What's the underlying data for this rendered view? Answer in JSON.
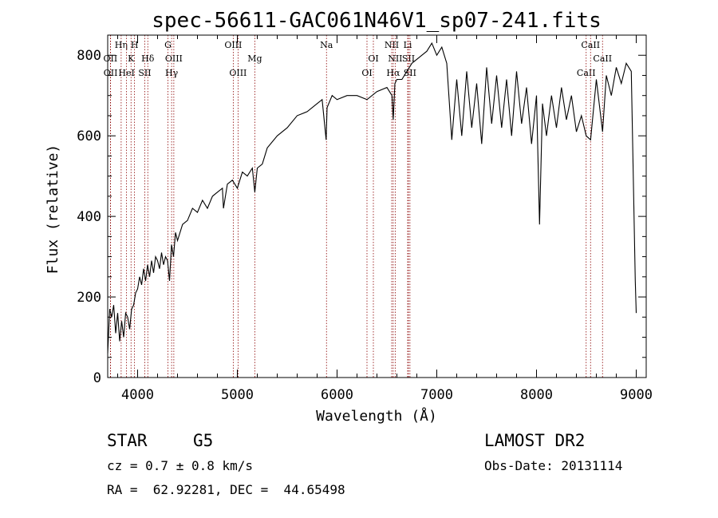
{
  "title": "spec-56611-GAC061N46V1_sp07-241.fits",
  "info": {
    "object_class": "STAR",
    "subclass": "G5",
    "cz": "cz = 0.7 ± 0.8 km/s",
    "radec": "RA =  62.92281, DEC =  44.65498",
    "survey": "LAMOST DR2",
    "obs_date": "Obs-Date: 20131114"
  },
  "colors": {
    "spectrum": "#000000",
    "line_marker": "#8b0000",
    "axes": "#000000"
  },
  "chart_data": {
    "type": "line",
    "xlabel": "Wavelength (Å)",
    "ylabel": "Flux (relative)",
    "xlim": [
      3700,
      9100
    ],
    "ylim": [
      0,
      850
    ],
    "xticks": [
      4000,
      5000,
      6000,
      7000,
      8000,
      9000
    ],
    "yticks": [
      0,
      200,
      400,
      600,
      800
    ],
    "series": [
      {
        "x": [
          3700,
          3720,
          3740,
          3760,
          3780,
          3800,
          3820,
          3840,
          3860,
          3880,
          3900,
          3920,
          3940,
          3960,
          3980,
          4000,
          4020,
          4040,
          4060,
          4080,
          4100,
          4120,
          4140,
          4160,
          4180,
          4200,
          4220,
          4240,
          4260,
          4280,
          4300,
          4320,
          4340,
          4360,
          4380,
          4400,
          4450,
          4500,
          4550,
          4600,
          4650,
          4700,
          4750,
          4800,
          4850,
          4861,
          4900,
          4950,
          5000,
          5050,
          5100,
          5150,
          5175,
          5200,
          5250,
          5300,
          5400,
          5500,
          5600,
          5700,
          5800,
          5850,
          5890,
          5900,
          5950,
          6000,
          6100,
          6200,
          6300,
          6400,
          6500,
          6550,
          6563,
          6580,
          6600,
          6650,
          6700,
          6750,
          6800,
          6850,
          6900,
          6950,
          7000,
          7050,
          7100,
          7150,
          7200,
          7250,
          7300,
          7350,
          7400,
          7450,
          7500,
          7550,
          7600,
          7650,
          7700,
          7750,
          7800,
          7850,
          7900,
          7950,
          8000,
          8030,
          8060,
          8100,
          8150,
          8200,
          8250,
          8300,
          8350,
          8400,
          8450,
          8498,
          8542,
          8600,
          8662,
          8700,
          8750,
          8800,
          8850,
          8900,
          8950,
          8990,
          9000
        ],
        "y": [
          60,
          170,
          150,
          180,
          110,
          160,
          90,
          140,
          100,
          160,
          150,
          120,
          170,
          180,
          210,
          220,
          250,
          230,
          270,
          240,
          280,
          250,
          290,
          260,
          300,
          290,
          270,
          310,
          280,
          300,
          290,
          240,
          330,
          300,
          360,
          340,
          380,
          390,
          420,
          410,
          440,
          420,
          450,
          460,
          470,
          420,
          480,
          490,
          470,
          510,
          500,
          520,
          460,
          520,
          530,
          570,
          600,
          620,
          650,
          660,
          680,
          690,
          590,
          670,
          700,
          690,
          700,
          700,
          690,
          710,
          720,
          700,
          640,
          730,
          740,
          740,
          760,
          780,
          790,
          800,
          810,
          830,
          800,
          820,
          780,
          590,
          740,
          600,
          760,
          620,
          730,
          580,
          770,
          630,
          750,
          620,
          740,
          600,
          760,
          630,
          720,
          580,
          700,
          380,
          680,
          600,
          700,
          620,
          720,
          640,
          700,
          610,
          650,
          600,
          590,
          740,
          610,
          750,
          700,
          770,
          730,
          780,
          760,
          240,
          160
        ]
      }
    ],
    "line_markers": [
      {
        "name": "OII",
        "wavelength": 3727,
        "row": 2
      },
      {
        "name": "OII",
        "wavelength": 3729,
        "row": 3
      },
      {
        "name": "Hη",
        "wavelength": 3835,
        "row": 1
      },
      {
        "name": "HeI",
        "wavelength": 3889,
        "row": 3
      },
      {
        "name": "K",
        "wavelength": 3934,
        "row": 2
      },
      {
        "name": "H",
        "wavelength": 3969,
        "row": 1
      },
      {
        "name": "SII",
        "wavelength": 4072,
        "row": 3
      },
      {
        "name": "Hδ",
        "wavelength": 4102,
        "row": 2
      },
      {
        "name": "G",
        "wavelength": 4304,
        "row": 1
      },
      {
        "name": "Hγ",
        "wavelength": 4341,
        "row": 3
      },
      {
        "name": "OIII",
        "wavelength": 4363,
        "row": 2
      },
      {
        "name": "OIII",
        "wavelength": 4959,
        "row": 1
      },
      {
        "name": "OIII",
        "wavelength": 5007,
        "row": 3
      },
      {
        "name": "Mg",
        "wavelength": 5175,
        "row": 2
      },
      {
        "name": "Na",
        "wavelength": 5894,
        "row": 1
      },
      {
        "name": "OI",
        "wavelength": 6300,
        "row": 3
      },
      {
        "name": "OI",
        "wavelength": 6364,
        "row": 2
      },
      {
        "name": "NII",
        "wavelength": 6548,
        "row": 1
      },
      {
        "name": "Hα",
        "wavelength": 6563,
        "row": 3
      },
      {
        "name": "NII",
        "wavelength": 6583,
        "row": 2
      },
      {
        "name": "Li",
        "wavelength": 6708,
        "row": 1
      },
      {
        "name": "SII",
        "wavelength": 6716,
        "row": 2
      },
      {
        "name": "SII",
        "wavelength": 6731,
        "row": 3
      },
      {
        "name": "CaII",
        "wavelength": 8498,
        "row": 3
      },
      {
        "name": "CaII",
        "wavelength": 8542,
        "row": 1
      },
      {
        "name": "CaII",
        "wavelength": 8662,
        "row": 2
      }
    ]
  }
}
